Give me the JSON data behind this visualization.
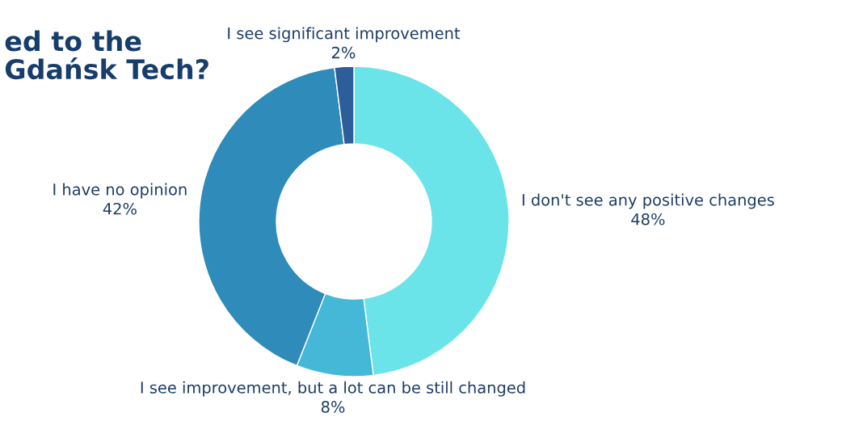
{
  "chart_data": {
    "type": "donut",
    "title": "ed to the\nGdańsk Tech?",
    "categories": [
      "I don't see any positive changes",
      "I see improvement, but a lot can be still changed",
      "I have no opinion",
      "I see significant improvement"
    ],
    "values": [
      48,
      8,
      42,
      2
    ],
    "colors": [
      "#6ae4e8",
      "#44b8d6",
      "#2e8bba",
      "#2e5e9a"
    ],
    "value_labels": [
      "48%",
      "8%",
      "42%",
      "2%"
    ]
  }
}
